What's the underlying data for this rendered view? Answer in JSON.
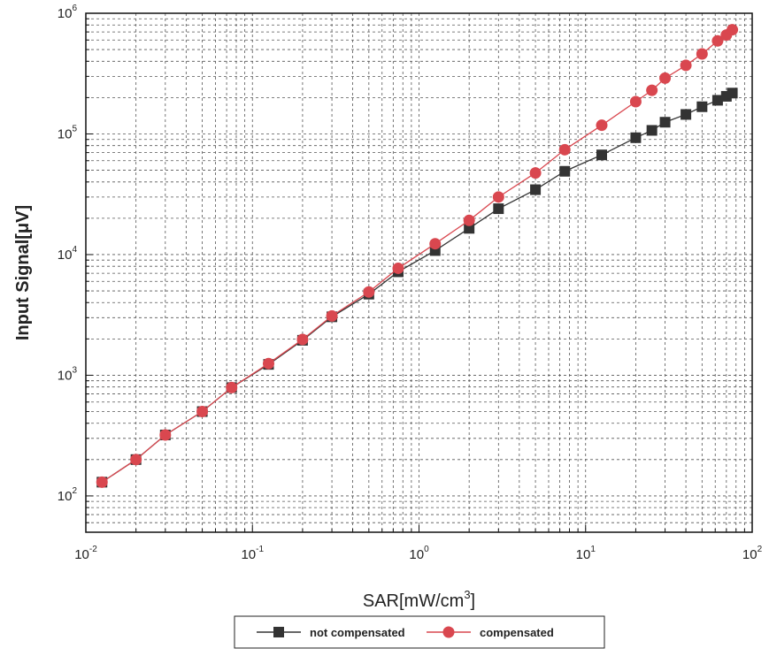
{
  "chart_data": {
    "type": "scatter",
    "title": "",
    "xlabel": "SAR[mW/cm",
    "xlabel_sup": "3",
    "xlabel_suffix": "]",
    "ylabel": "Input Signal[μV]",
    "x_scale": "log",
    "y_scale": "log",
    "xlim": [
      0.01,
      100
    ],
    "ylim": [
      50,
      1000000
    ],
    "x_ticks": [
      {
        "base": "10",
        "exp": "-2",
        "value": 0.01
      },
      {
        "base": "10",
        "exp": "-1",
        "value": 0.1
      },
      {
        "base": "10",
        "exp": "0",
        "value": 1
      },
      {
        "base": "10",
        "exp": "1",
        "value": 10
      },
      {
        "base": "10",
        "exp": "2",
        "value": 100
      }
    ],
    "y_ticks": [
      {
        "base": "10",
        "exp": "2",
        "value": 100
      },
      {
        "base": "10",
        "exp": "3",
        "value": 1000
      },
      {
        "base": "10",
        "exp": "4",
        "value": 10000
      },
      {
        "base": "10",
        "exp": "5",
        "value": 100000
      },
      {
        "base": "10",
        "exp": "6",
        "value": 1000000
      }
    ],
    "grid": true,
    "legend_position": "bottom",
    "series": [
      {
        "name": "not compensated",
        "marker": "square",
        "color": "#333333",
        "x": [
          0.0125,
          0.02,
          0.03,
          0.05,
          0.075,
          0.125,
          0.2,
          0.3,
          0.5,
          0.75,
          1.25,
          2,
          3,
          5,
          7.5,
          12.5,
          20,
          25,
          30,
          40,
          50,
          62,
          70,
          76
        ],
        "y": [
          130,
          200,
          320,
          500,
          790,
          1230,
          1950,
          3050,
          4700,
          7200,
          10800,
          16500,
          24000,
          34500,
          49000,
          67000,
          93000,
          107000,
          125000,
          145000,
          168000,
          190000,
          205000,
          218000
        ]
      },
      {
        "name": "compensated",
        "marker": "circle",
        "color": "#d9474f",
        "x": [
          0.0125,
          0.02,
          0.03,
          0.05,
          0.075,
          0.125,
          0.2,
          0.3,
          0.5,
          0.75,
          1.25,
          2,
          3,
          5,
          7.5,
          12.5,
          20,
          25,
          30,
          40,
          50,
          62,
          70,
          76
        ],
        "y": [
          130,
          200,
          320,
          500,
          790,
          1250,
          1980,
          3100,
          4900,
          7700,
          12300,
          19200,
          30000,
          47500,
          74000,
          118000,
          185000,
          230000,
          290000,
          370000,
          460000,
          590000,
          660000,
          730000
        ]
      }
    ]
  }
}
